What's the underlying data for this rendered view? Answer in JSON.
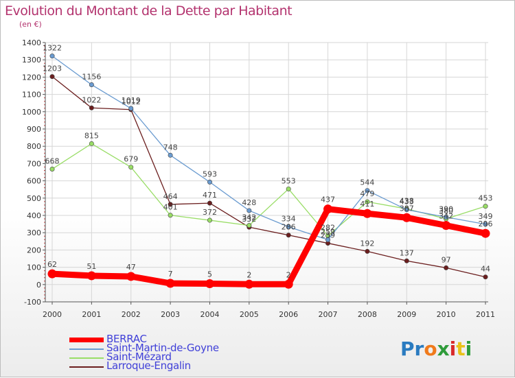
{
  "title": "Evolution du Montant de la Dette par Habitant",
  "subtitle": "(en €)",
  "logo": {
    "letters": [
      "P",
      "r",
      "o",
      "x",
      "i",
      "t",
      "i"
    ],
    "colors": [
      "#2a7bc0",
      "#2a7bc0",
      "#f07a1b",
      "#2e9b3a",
      "#d92a2a",
      "#e8c21a",
      "#2e9b3a"
    ]
  },
  "chart_data": {
    "type": "line",
    "title": "Evolution du Montant de la Dette par Habitant",
    "ylabel": "(en €)",
    "xlabel": "",
    "x": [
      "2000",
      "2001",
      "2002",
      "2003",
      "2004",
      "2005",
      "2006",
      "2007",
      "2008",
      "2009",
      "2010",
      "2011"
    ],
    "ylim": [
      -100,
      1400
    ],
    "yticks": [
      "-100",
      "0",
      "100",
      "200",
      "300",
      "400",
      "500",
      "600",
      "700",
      "800",
      "900",
      "1000",
      "1100",
      "1200",
      "1300",
      "1400"
    ],
    "grid": true,
    "legend": "bottom-left",
    "series": [
      {
        "name": "BERRAC",
        "color": "#ff0000",
        "values": [
          62,
          51,
          47,
          7,
          5,
          2,
          2,
          437,
          411,
          387,
          342,
          296
        ],
        "labels": [
          "62",
          "51",
          "47",
          "7",
          "5",
          "2",
          "2",
          "437",
          "411",
          "387",
          "342",
          "296"
        ]
      },
      {
        "name": "Saint-Martin-de-Goyne",
        "color": "#6a9bd0",
        "values": [
          1322,
          1156,
          1019,
          748,
          593,
          428,
          334,
          259,
          544,
          433,
          390,
          349
        ],
        "labels": [
          "1322",
          "1156",
          "1019",
          "748",
          "593",
          "428",
          "334",
          "259",
          "544",
          "433",
          "390",
          "349"
        ]
      },
      {
        "name": "Saint-Mézard",
        "color": "#99dd66",
        "values": [
          668,
          815,
          679,
          401,
          372,
          342,
          553,
          282,
          479,
          438,
          380,
          453
        ],
        "labels": [
          "668",
          "815",
          "679",
          "401",
          "372",
          "342",
          "553",
          "282",
          "479",
          "438",
          "380",
          "453"
        ]
      },
      {
        "name": "Larroque-Engalin",
        "color": "#6b1e1e",
        "values": [
          1203,
          1022,
          1012,
          464,
          471,
          332,
          286,
          239,
          192,
          137,
          97,
          44
        ],
        "labels": [
          "1203",
          "1022",
          "1012",
          "464",
          "471",
          "332",
          "286",
          "239",
          "192",
          "137",
          "97",
          "44"
        ]
      }
    ]
  }
}
